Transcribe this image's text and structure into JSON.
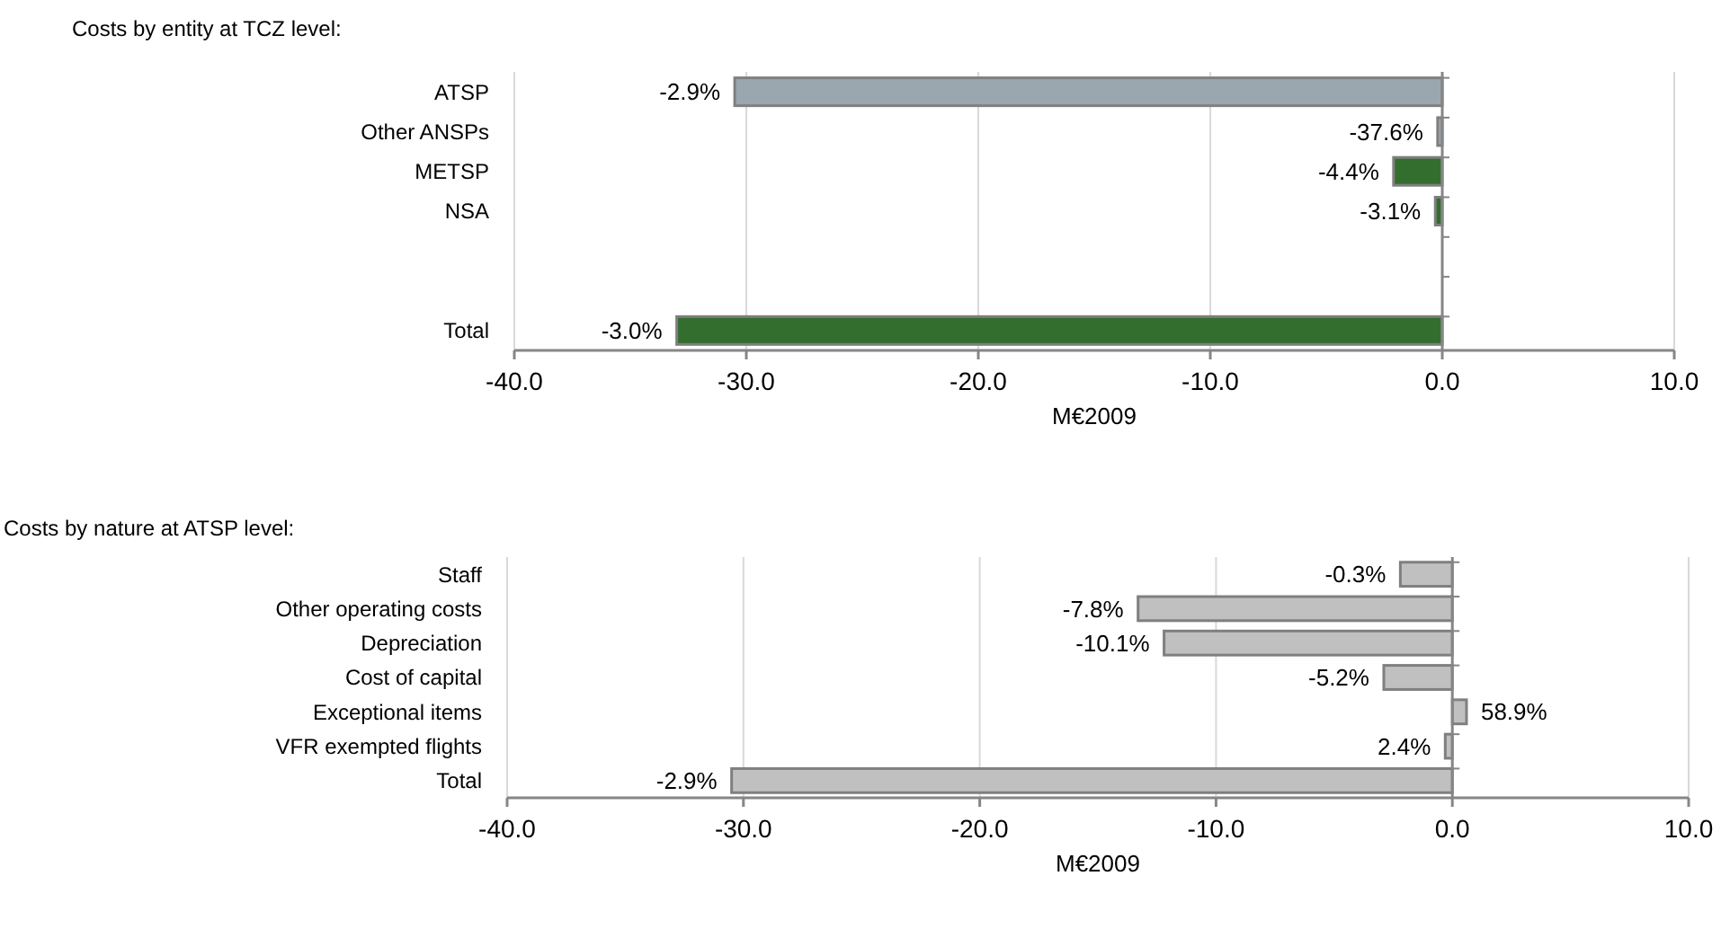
{
  "chart_data": [
    {
      "type": "bar",
      "orientation": "horizontal",
      "title": "Costs by entity at TCZ level:",
      "xlabel": "M€2009",
      "categories": [
        "ATSP",
        "Other ANSPs",
        "METSP",
        "NSA",
        null,
        null,
        "Total"
      ],
      "values": [
        -30.5,
        -0.2,
        -2.1,
        -0.3,
        null,
        null,
        -33.0
      ],
      "colors": [
        "#9ba7af",
        "#9ba7af",
        "#336e2e",
        "#336e2e",
        null,
        null,
        "#336e2e"
      ],
      "annotations": [
        {
          "text": "-2.9%",
          "x": -30.5,
          "y": "ATSP"
        },
        {
          "text": "-37.6%",
          "x": -0.2,
          "y": "Other ANSPs"
        },
        {
          "text": "-4.4%",
          "x": -2.1,
          "y": "METSP"
        },
        {
          "text": "-3.1%",
          "x": -0.3,
          "y": "NSA"
        },
        {
          "text": "-3.0%",
          "x": -33.0,
          "y": "Total"
        }
      ],
      "xlim": [
        -40,
        10
      ],
      "xticks": [
        {
          "value": -40,
          "label": "-40.0"
        },
        {
          "value": -30,
          "label": "-30.0"
        },
        {
          "value": -20,
          "label": "-20.0"
        },
        {
          "value": -10,
          "label": "-10.0"
        },
        {
          "value": 0,
          "label": "0.0"
        },
        {
          "value": 10,
          "label": "10.0"
        }
      ],
      "grid": "x"
    },
    {
      "type": "bar",
      "orientation": "horizontal",
      "title": "Costs by nature at ATSP level:",
      "xlabel": "M€2009",
      "categories": [
        "Staff",
        "Other operating costs",
        "Depreciation",
        "Cost of capital",
        "Exceptional items",
        "VFR exempted flights",
        "Total"
      ],
      "values": [
        -2.2,
        -13.3,
        -12.2,
        -2.9,
        0.6,
        -0.3,
        -30.5
      ],
      "color": "#c0c0c0",
      "annotations": [
        {
          "text": "-0.3%",
          "x": -2.2,
          "y": "Staff"
        },
        {
          "text": "-7.8%",
          "x": -13.3,
          "y": "Other operating costs"
        },
        {
          "text": "-10.1%",
          "x": -12.2,
          "y": "Depreciation"
        },
        {
          "text": "-5.2%",
          "x": -2.9,
          "y": "Cost of capital"
        },
        {
          "text": "58.9%",
          "x": 0.6,
          "y": "Exceptional items"
        },
        {
          "text": "2.4%",
          "x": -0.3,
          "y": "VFR exempted flights"
        },
        {
          "text": "-2.9%",
          "x": -30.5,
          "y": "Total"
        }
      ],
      "xlim": [
        -40,
        10
      ],
      "xticks": [
        {
          "value": -40,
          "label": "-40.0"
        },
        {
          "value": -30,
          "label": "-30.0"
        },
        {
          "value": -20,
          "label": "-20.0"
        },
        {
          "value": -10,
          "label": "-10.0"
        },
        {
          "value": 0,
          "label": "0.0"
        },
        {
          "value": 10,
          "label": "10.0"
        }
      ],
      "grid": "x"
    }
  ]
}
